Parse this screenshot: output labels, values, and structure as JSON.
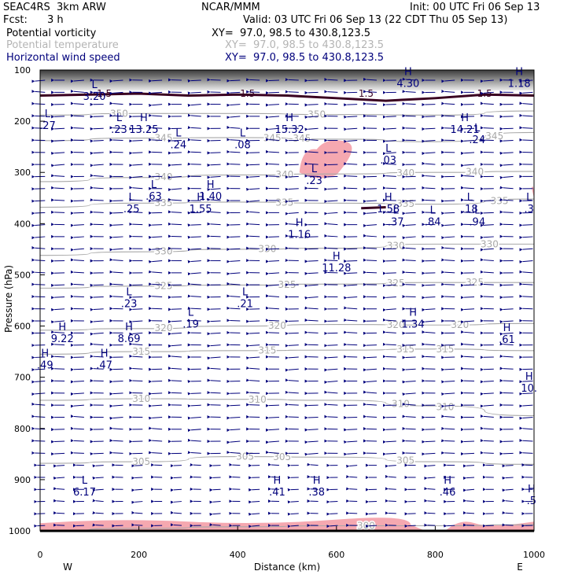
{
  "header": {
    "model": "SEAC4RS  3km ARW",
    "org": "NCAR/MMM",
    "init": "Init: 00 UTC Fri 06 Sep 13",
    "fcst_label": "Fcst:",
    "fcst_value": "3 h",
    "valid": "Valid: 03 UTC Fri 06 Sep 13 (22 CDT Thu 05 Sep 13)",
    "fields": [
      {
        "name": "Potential vorticity",
        "xy": "XY=  97.0, 98.5 to 430.8,123.5",
        "color": "#000000"
      },
      {
        "name": "Potential temperature",
        "xy": "XY=  97.0, 98.5 to 430.8,123.5",
        "color": "#b4b4b4"
      },
      {
        "name": "Horizontal wind speed",
        "xy": "XY=  97.0, 98.5 to 430.8,123.5",
        "color": "#00007c"
      }
    ]
  },
  "chart_data": {
    "type": "cross-section",
    "xlabel": "Distance (km)",
    "ylabel": "Pressure (hPa)",
    "xlim": [
      0,
      1000
    ],
    "ylim": [
      1000,
      100
    ],
    "x_ticks": [
      "0",
      "200",
      "400",
      "600",
      "800",
      "1000"
    ],
    "y_ticks": [
      "100",
      "200",
      "300",
      "400",
      "500",
      "600",
      "700",
      "800",
      "900",
      "1000"
    ],
    "x_end_labels": {
      "left": "W",
      "right": "E"
    },
    "theta_contours": [
      {
        "label": "300",
        "p": [
          1000,
          995,
          992,
          990,
          990,
          988
        ],
        "labels_at_x": [
          660
        ]
      },
      {
        "label": "305",
        "p": [
          868,
          865,
          855,
          856,
          865,
          870
        ],
        "labels_at_x": [
          205,
          415,
          490,
          740
        ]
      },
      {
        "label": "310",
        "p": [
          745,
          742,
          743,
          745,
          756,
          775
        ],
        "labels_at_x": [
          205,
          440,
          730,
          820
        ]
      },
      {
        "label": "315",
        "p": [
          655,
          650,
          648,
          647,
          645,
          648
        ],
        "labels_at_x": [
          205,
          460,
          740,
          820
        ]
      },
      {
        "label": "320",
        "p": [
          608,
          605,
          600,
          597,
          598,
          595
        ],
        "labels_at_x": [
          250,
          480,
          720,
          850
        ]
      },
      {
        "label": "325",
        "p": [
          526,
          522,
          520,
          518,
          515,
          515
        ],
        "labels_at_x": [
          250,
          500,
          720,
          880
        ]
      },
      {
        "label": "330",
        "p": [
          462,
          455,
          450,
          448,
          440,
          440
        ],
        "labels_at_x": [
          250,
          460,
          720,
          910
        ]
      },
      {
        "label": "335",
        "p": [
          368,
          360,
          358,
          360,
          362,
          352
        ],
        "labels_at_x": [
          250,
          495,
          740,
          930
        ]
      },
      {
        "label": "340",
        "p": [
          318,
          310,
          305,
          303,
          300,
          298
        ],
        "labels_at_x": [
          250,
          495,
          740,
          880
        ]
      },
      {
        "label": "345",
        "p": [
          238,
          233,
          232,
          235,
          240,
          222
        ],
        "labels_at_x": [
          250,
          470,
          530,
          920
        ]
      },
      {
        "label": "350",
        "p": [
          188,
          185,
          185,
          187,
          188,
          180
        ],
        "labels_at_x": [
          160,
          560
        ]
      }
    ],
    "pv_contour": {
      "label": "1.5",
      "labels_at_x": [
        420,
        660,
        900,
        130
      ]
    },
    "extrema": [
      {
        "type": "L",
        "value": "3.20",
        "x": 110,
        "p": 135
      },
      {
        "type": "H",
        "value": "4.30",
        "x": 745,
        "p": 110
      },
      {
        "type": "H",
        "value": "1.18",
        "x": 970,
        "p": 110
      },
      {
        "type": "L",
        "value": ".27",
        "x": 15,
        "p": 192
      },
      {
        "type": "L",
        "value": ".23",
        "x": 160,
        "p": 200
      },
      {
        "type": "H",
        "value": "13.25",
        "x": 210,
        "p": 200
      },
      {
        "type": "L",
        "value": ".24",
        "x": 280,
        "p": 230
      },
      {
        "type": "L",
        "value": ".08",
        "x": 410,
        "p": 230
      },
      {
        "type": "H",
        "value": "15.32",
        "x": 505,
        "p": 200
      },
      {
        "type": "H",
        "value": "14.21",
        "x": 860,
        "p": 200
      },
      {
        "type": "L",
        "value": ".24",
        "x": 885,
        "p": 220
      },
      {
        "type": "L",
        "value": ".03",
        "x": 705,
        "p": 260
      },
      {
        "type": "L",
        "value": ".23",
        "x": 555,
        "p": 300
      },
      {
        "type": "L",
        "value": ".63",
        "x": 230,
        "p": 330
      },
      {
        "type": "L",
        "value": ".25",
        "x": 185,
        "p": 355
      },
      {
        "type": "H",
        "value": "1.40",
        "x": 345,
        "p": 330
      },
      {
        "type": "H",
        "value": "1.55",
        "x": 325,
        "p": 355
      },
      {
        "type": "H",
        "value": "1.58",
        "x": 705,
        "p": 355
      },
      {
        "type": "L",
        "value": ".37",
        "x": 720,
        "p": 380
      },
      {
        "type": "L",
        "value": ".84",
        "x": 795,
        "p": 380
      },
      {
        "type": "L",
        "value": ".18",
        "x": 870,
        "p": 355
      },
      {
        "type": "L",
        "value": ".94",
        "x": 885,
        "p": 380
      },
      {
        "type": "L",
        "value": ".3",
        "x": 990,
        "p": 355
      },
      {
        "type": "H",
        "value": "1.16",
        "x": 525,
        "p": 405
      },
      {
        "type": "H",
        "value": "11.28",
        "x": 600,
        "p": 470
      },
      {
        "type": "L",
        "value": ".23",
        "x": 180,
        "p": 540
      },
      {
        "type": "L",
        "value": ".21",
        "x": 415,
        "p": 540
      },
      {
        "type": "L",
        "value": ".19",
        "x": 305,
        "p": 580
      },
      {
        "type": "H",
        "value": "1.34",
        "x": 755,
        "p": 580
      },
      {
        "type": "H",
        "value": "9.22",
        "x": 45,
        "p": 608
      },
      {
        "type": "H",
        "value": "8.69",
        "x": 180,
        "p": 608
      },
      {
        "type": "H",
        "value": ".61",
        "x": 945,
        "p": 610
      },
      {
        "type": "H",
        "value": ".49",
        "x": 10,
        "p": 660
      },
      {
        "type": "H",
        "value": ".47",
        "x": 130,
        "p": 660
      },
      {
        "type": "H",
        "value": "10.",
        "x": 990,
        "p": 705
      },
      {
        "type": "L",
        "value": "6.17",
        "x": 90,
        "p": 908
      },
      {
        "type": "H",
        "value": ".41",
        "x": 480,
        "p": 908
      },
      {
        "type": "H",
        "value": ".38",
        "x": 560,
        "p": 908
      },
      {
        "type": "H",
        "value": ".46",
        "x": 825,
        "p": 908
      },
      {
        "type": "H",
        "value": ".5",
        "x": 995,
        "p": 925
      }
    ],
    "wind": {
      "dominant_direction": "from east",
      "vector_color": "#00007c"
    },
    "shading": {
      "high_pv": "#888888",
      "humidity_patch": "#f5a8b0"
    }
  }
}
